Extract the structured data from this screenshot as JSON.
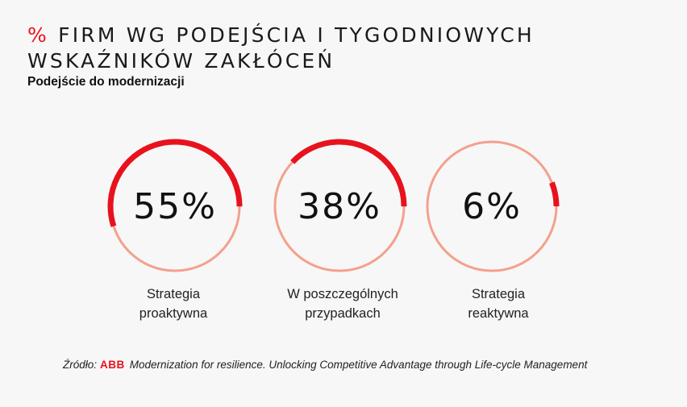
{
  "header": {
    "title_prefix": "%",
    "title_rest": " FIRM WG PODEJŚCIA I TYGODNIOWYCH WSKAŹNIKÓW ZAKŁÓCEŃ",
    "subtitle": "Podejście do modernizacji"
  },
  "colors": {
    "accent": "#e8121d",
    "track": "#f4a08c",
    "background": "#f7f7f7"
  },
  "chart_data": {
    "type": "donut",
    "title": "% FIRM WG PODEJŚCIA I TYGODNIOWYCH WSKAŹNIKÓW ZAKŁÓCEŃ",
    "subtitle": "Podejście do modernizacji",
    "items": [
      {
        "value": 55,
        "value_label": "55%",
        "label_line1": "Strategia",
        "label_line2": "proaktywna"
      },
      {
        "value": 38,
        "value_label": "38%",
        "label_line1": "W poszczególnych",
        "label_line2": "przypadkach"
      },
      {
        "value": 6,
        "value_label": "6%",
        "label_line1": "Strategia",
        "label_line2": "reaktywna"
      }
    ]
  },
  "footer": {
    "source_prefix": "Źródło:",
    "logo_text": "ABB",
    "source_text": "Modernization for resilience. Unlocking Competitive Advantage through Life-cycle Management"
  }
}
